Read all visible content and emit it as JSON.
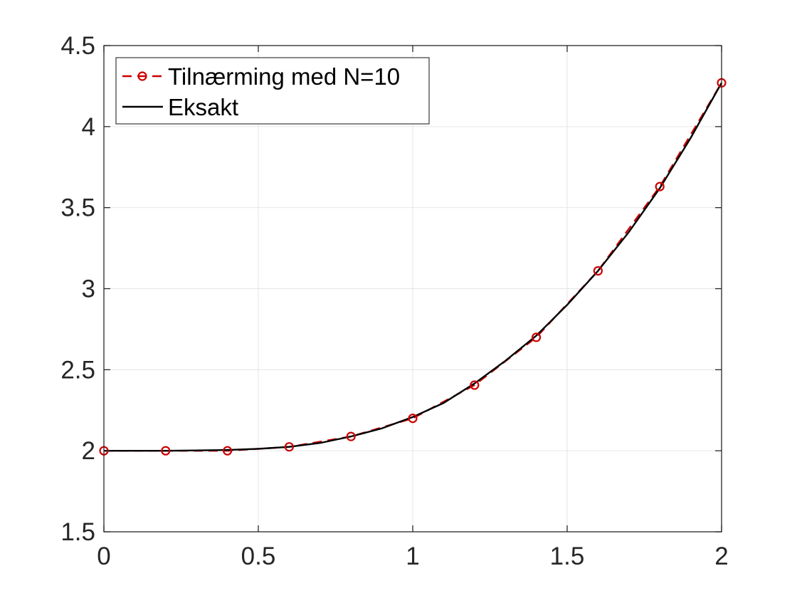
{
  "chart_data": {
    "type": "line",
    "title": "",
    "xlabel": "",
    "ylabel": "",
    "xlim": [
      0,
      2
    ],
    "ylim": [
      1.5,
      4.5
    ],
    "x_ticks": [
      0,
      0.5,
      1,
      1.5,
      2
    ],
    "x_tick_labels": [
      "0",
      "0.5",
      "1",
      "1.5",
      "2"
    ],
    "y_ticks": [
      1.5,
      2,
      2.5,
      3,
      3.5,
      4,
      4.5
    ],
    "y_tick_labels": [
      "1.5",
      "2",
      "2.5",
      "3",
      "3.5",
      "4",
      "4.5"
    ],
    "grid": true,
    "legend_position": "top-left",
    "series": [
      {
        "name": "Tilnærming med N=10",
        "style": "dashed with circle markers",
        "color": "#cc0000",
        "x": [
          0,
          0.2,
          0.4,
          0.6,
          0.8,
          1.0,
          1.2,
          1.4,
          1.6,
          1.8,
          2.0
        ],
        "y": [
          2.0,
          2.0,
          2.0,
          2.024,
          2.088,
          2.2,
          2.405,
          2.7,
          3.11,
          3.63,
          4.27
        ]
      },
      {
        "name": "Eksakt",
        "style": "solid",
        "color": "#000000",
        "x": [
          0,
          0.1,
          0.2,
          0.3,
          0.4,
          0.5,
          0.6,
          0.7,
          0.8,
          0.9,
          1.0,
          1.1,
          1.2,
          1.3,
          1.4,
          1.5,
          1.6,
          1.7,
          1.8,
          1.9,
          2.0
        ],
        "y": [
          2.0,
          2.0,
          2.0,
          2.002,
          2.005,
          2.012,
          2.024,
          2.048,
          2.088,
          2.138,
          2.208,
          2.295,
          2.415,
          2.555,
          2.71,
          2.9,
          3.11,
          3.35,
          3.62,
          3.93,
          4.27
        ]
      }
    ]
  }
}
